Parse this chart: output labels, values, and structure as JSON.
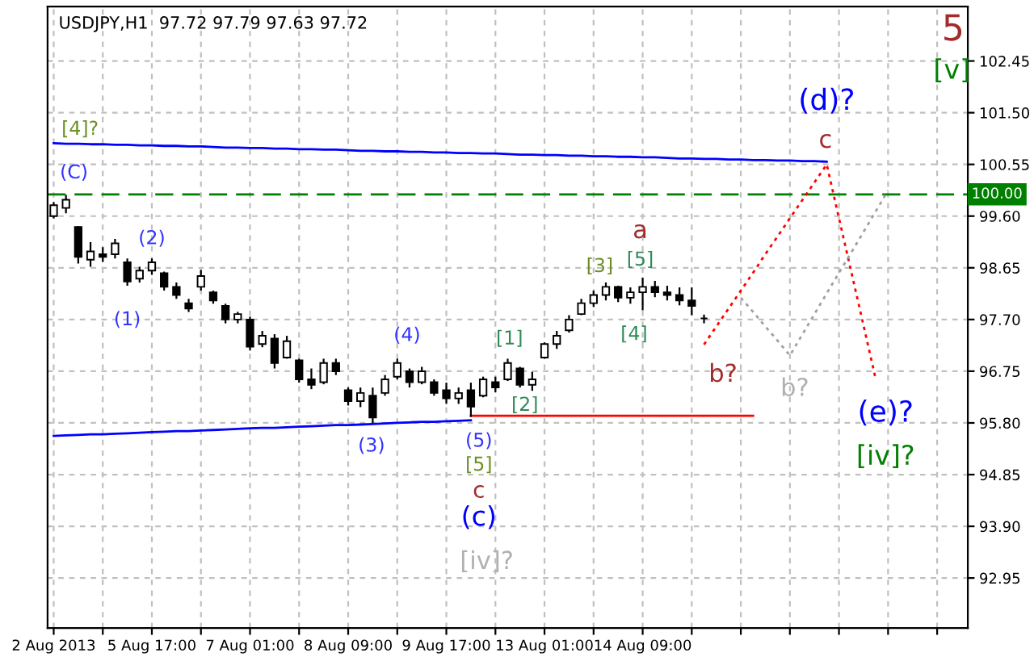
{
  "chart_data": {
    "type": "candlestick",
    "title": "USDJPY,H1  97.72 97.79 97.63 97.72",
    "categories": [
      "2 Aug 2013",
      null,
      null,
      null,
      null,
      null,
      null,
      null,
      "5 Aug 17:00",
      null,
      null,
      null,
      null,
      null,
      null,
      null,
      "7 Aug 01:00",
      null,
      null,
      null,
      null,
      null,
      null,
      null,
      "8 Aug 09:00",
      null,
      null,
      null,
      null,
      null,
      null,
      null,
      "9 Aug 17:00",
      null,
      null,
      null,
      null,
      null,
      null,
      null,
      "13 Aug 01:00",
      null,
      null,
      null,
      null,
      null,
      null,
      null,
      "14 Aug 09:00",
      null,
      null,
      null,
      null,
      null,
      null,
      null,
      null,
      null,
      null,
      null,
      null,
      null,
      null,
      null,
      null,
      null,
      null,
      null,
      null,
      null,
      null,
      null,
      null,
      null,
      null
    ],
    "ohlc": [
      [
        99.6,
        99.86,
        99.56,
        99.8
      ],
      [
        99.75,
        99.99,
        99.65,
        99.9
      ],
      [
        99.4,
        99.42,
        98.73,
        98.85
      ],
      [
        98.8,
        99.12,
        98.67,
        98.95
      ],
      [
        98.9,
        99.03,
        98.76,
        98.85
      ],
      [
        98.9,
        99.18,
        98.82,
        99.1
      ],
      [
        98.75,
        98.82,
        98.32,
        98.4
      ],
      [
        98.45,
        98.67,
        98.38,
        98.6
      ],
      [
        98.6,
        98.82,
        98.52,
        98.75
      ],
      [
        98.55,
        98.58,
        98.23,
        98.3
      ],
      [
        98.3,
        98.38,
        98.08,
        98.15
      ],
      [
        98.0,
        98.08,
        97.84,
        97.9
      ],
      [
        98.3,
        98.61,
        98.23,
        98.5
      ],
      [
        98.2,
        98.23,
        97.99,
        98.05
      ],
      [
        97.95,
        97.99,
        97.63,
        97.7
      ],
      [
        97.7,
        97.84,
        97.63,
        97.8
      ],
      [
        97.7,
        97.75,
        97.13,
        97.2
      ],
      [
        97.25,
        97.49,
        97.19,
        97.4
      ],
      [
        97.35,
        97.43,
        96.8,
        96.9
      ],
      [
        97.0,
        97.4,
        96.98,
        97.3
      ],
      [
        96.95,
        96.98,
        96.54,
        96.6
      ],
      [
        96.6,
        96.8,
        96.42,
        96.5
      ],
      [
        96.55,
        96.98,
        96.51,
        96.9
      ],
      [
        96.9,
        96.98,
        96.68,
        96.75
      ],
      [
        96.4,
        96.45,
        96.12,
        96.2
      ],
      [
        96.2,
        96.45,
        96.09,
        96.35
      ],
      [
        96.3,
        96.45,
        95.8,
        95.9
      ],
      [
        96.35,
        96.68,
        96.3,
        96.6
      ],
      [
        96.65,
        96.98,
        96.6,
        96.9
      ],
      [
        96.75,
        96.8,
        96.45,
        96.55
      ],
      [
        96.55,
        96.83,
        96.51,
        96.75
      ],
      [
        96.55,
        96.6,
        96.3,
        96.35
      ],
      [
        96.4,
        96.54,
        96.15,
        96.25
      ],
      [
        96.25,
        96.45,
        96.15,
        96.35
      ],
      [
        96.4,
        96.54,
        95.91,
        96.1
      ],
      [
        96.3,
        96.65,
        96.27,
        96.6
      ],
      [
        96.55,
        96.65,
        96.36,
        96.45
      ],
      [
        96.6,
        96.98,
        96.57,
        96.9
      ],
      [
        96.8,
        96.83,
        96.45,
        96.5
      ],
      [
        96.5,
        96.74,
        96.39,
        96.6
      ],
      [
        97.0,
        97.28,
        96.98,
        97.25
      ],
      [
        97.25,
        97.49,
        97.16,
        97.4
      ],
      [
        97.5,
        97.78,
        97.46,
        97.7
      ],
      [
        97.8,
        98.08,
        97.78,
        98.0
      ],
      [
        98.0,
        98.23,
        97.93,
        98.15
      ],
      [
        98.15,
        98.38,
        98.05,
        98.3
      ],
      [
        98.3,
        98.32,
        98.02,
        98.1
      ],
      [
        98.1,
        98.29,
        97.99,
        98.2
      ],
      [
        98.2,
        98.47,
        97.87,
        98.3
      ],
      [
        98.3,
        98.41,
        98.11,
        98.2
      ],
      [
        98.2,
        98.32,
        98.05,
        98.15
      ],
      [
        98.15,
        98.29,
        97.96,
        98.05
      ],
      [
        98.05,
        98.29,
        97.78,
        97.95
      ],
      [
        97.72,
        97.79,
        97.63,
        97.72
      ],
      null,
      null,
      null,
      null,
      null,
      null,
      null,
      null,
      null,
      null,
      null,
      null,
      null,
      null,
      null,
      null,
      null,
      null,
      null,
      null,
      null
    ],
    "series": [
      {
        "type": "line",
        "color": "#0000ff",
        "line_style": "solid",
        "values": [
          100.94,
          100.93,
          100.93,
          100.92,
          100.92,
          100.91,
          100.91,
          100.9,
          100.9,
          100.89,
          100.89,
          100.88,
          100.88,
          100.87,
          100.86,
          100.86,
          100.85,
          100.85,
          100.84,
          100.84,
          100.83,
          100.83,
          100.82,
          100.82,
          100.81,
          100.8,
          100.8,
          100.79,
          100.79,
          100.78,
          100.78,
          100.77,
          100.77,
          100.76,
          100.76,
          100.75,
          100.75,
          100.74,
          100.73,
          100.73,
          100.72,
          100.72,
          100.71,
          100.71,
          100.7,
          100.7,
          100.69,
          100.69,
          100.68,
          100.68,
          100.67,
          100.66,
          100.66,
          100.65,
          100.65,
          100.64,
          100.64,
          100.63,
          100.63,
          100.62,
          100.62,
          100.61,
          100.61,
          100.6,
          null,
          null,
          null,
          null,
          null,
          null,
          null,
          null,
          null,
          null,
          null
        ]
      },
      {
        "type": "line",
        "color": "#0000ff",
        "line_style": "solid",
        "values": [
          95.56,
          95.57,
          95.58,
          95.59,
          95.59,
          95.6,
          95.61,
          95.62,
          95.63,
          95.64,
          95.65,
          95.65,
          95.66,
          95.67,
          95.68,
          95.69,
          95.7,
          95.71,
          95.71,
          95.72,
          95.73,
          95.74,
          95.75,
          95.76,
          95.76,
          95.77,
          95.78,
          95.79,
          95.8,
          95.81,
          95.82,
          95.82,
          95.83,
          95.84,
          95.85,
          null,
          null,
          null,
          null,
          null,
          null,
          null,
          null,
          null,
          null,
          null,
          null,
          null,
          null,
          null,
          null,
          null,
          null,
          null,
          null,
          null,
          null,
          null,
          null,
          null,
          null,
          null,
          null,
          null,
          null,
          null,
          null,
          null,
          null,
          null,
          null,
          null,
          null,
          null,
          null
        ]
      },
      {
        "type": "line",
        "color": "#ff0000",
        "line_style": "solid",
        "values": [
          null,
          null,
          null,
          null,
          null,
          null,
          null,
          null,
          null,
          null,
          null,
          null,
          null,
          null,
          null,
          null,
          null,
          null,
          null,
          null,
          null,
          null,
          null,
          null,
          null,
          null,
          null,
          null,
          null,
          null,
          null,
          null,
          null,
          null,
          95.93,
          95.93,
          95.93,
          95.93,
          95.93,
          95.93,
          95.93,
          95.93,
          95.93,
          95.93,
          95.93,
          95.93,
          95.93,
          95.93,
          95.93,
          95.93,
          95.93,
          95.93,
          95.93,
          95.93,
          95.93,
          95.93,
          95.93,
          95.93,
          null,
          null,
          null,
          null,
          null,
          null,
          null,
          null,
          null,
          null,
          null,
          null,
          null,
          null,
          null,
          null,
          null
        ]
      },
      {
        "type": "line",
        "color": "#ff0000",
        "line_style": "dotted",
        "values": [
          null,
          null,
          null,
          null,
          null,
          null,
          null,
          null,
          null,
          null,
          null,
          null,
          null,
          null,
          null,
          null,
          null,
          null,
          null,
          null,
          null,
          null,
          null,
          null,
          null,
          null,
          null,
          null,
          null,
          null,
          null,
          null,
          null,
          null,
          null,
          null,
          null,
          null,
          null,
          null,
          null,
          null,
          null,
          null,
          null,
          null,
          null,
          null,
          null,
          null,
          null,
          null,
          null,
          97.24,
          97.57,
          97.9,
          98.23,
          98.56,
          98.9,
          99.23,
          99.56,
          99.89,
          100.22,
          100.55,
          99.56,
          98.58,
          97.59,
          96.6,
          null,
          null,
          null,
          null,
          null,
          null,
          null
        ]
      },
      {
        "type": "line",
        "color": "#a0a0a0",
        "line_style": "dotted",
        "values": [
          null,
          null,
          null,
          null,
          null,
          null,
          null,
          null,
          null,
          null,
          null,
          null,
          null,
          null,
          null,
          null,
          null,
          null,
          null,
          null,
          null,
          null,
          null,
          null,
          null,
          null,
          null,
          null,
          null,
          null,
          null,
          null,
          null,
          null,
          null,
          null,
          null,
          null,
          null,
          null,
          null,
          null,
          null,
          null,
          null,
          null,
          null,
          null,
          null,
          null,
          null,
          null,
          null,
          null,
          null,
          null,
          98.1,
          97.84,
          97.57,
          97.31,
          97.04,
          97.42,
          97.8,
          98.18,
          98.56,
          98.93,
          99.31,
          99.69,
          100.07,
          null,
          null,
          null,
          null,
          null,
          null
        ]
      }
    ],
    "ref_lines": [
      {
        "axis": "y",
        "value": 100.0,
        "label": "100.00",
        "color": "#008000",
        "line_style": "dashed"
      }
    ],
    "ylim": [
      92.03,
      103.45
    ],
    "yticks": [
      {
        "value": 92.95,
        "label": "92.95"
      },
      {
        "value": 93.9,
        "label": "93.90"
      },
      {
        "value": 94.85,
        "label": "94.85"
      },
      {
        "value": 95.8,
        "label": "95.80"
      },
      {
        "value": 96.75,
        "label": "96.75"
      },
      {
        "value": 97.7,
        "label": "97.70"
      },
      {
        "value": 98.65,
        "label": "98.65"
      },
      {
        "value": 99.6,
        "label": "99.60"
      },
      {
        "value": 100.55,
        "label": "100.55"
      },
      {
        "value": 101.5,
        "label": "101.50"
      },
      {
        "value": 102.45,
        "label": "102.45"
      }
    ],
    "grid": true,
    "annotations": [
      "[4]?",
      "(C)",
      "(2)",
      "(1)",
      "(4)",
      "(3)",
      "(5)",
      "[5]",
      "c",
      "(c)",
      "[iv]?",
      "[1]",
      "[2]",
      "[3]",
      "[5]",
      "a",
      "[4]",
      "b?",
      "b?",
      "c",
      "(d)?",
      "(e)?",
      "[iv]?",
      "5",
      "[v]"
    ]
  }
}
